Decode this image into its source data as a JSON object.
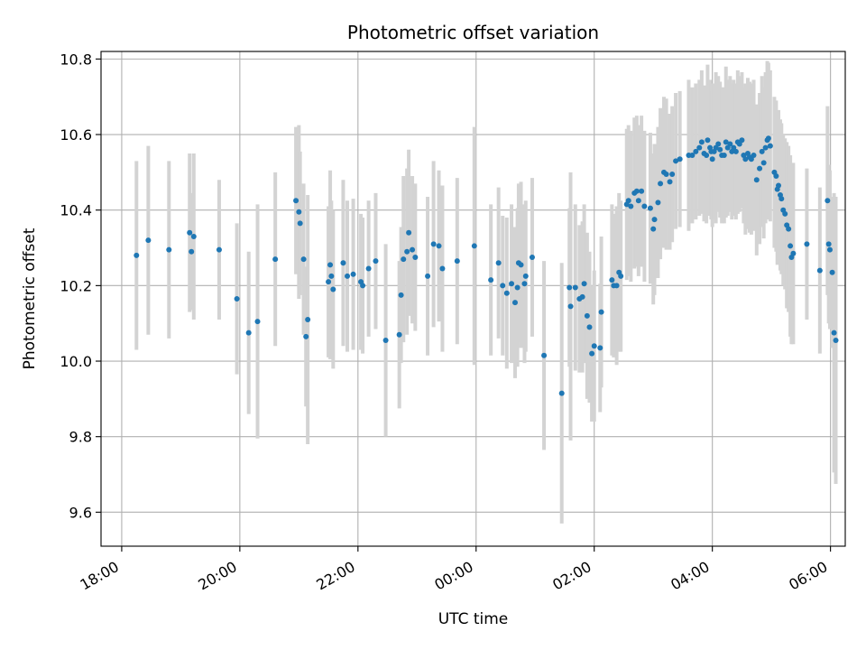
{
  "chart_data": {
    "type": "scatter",
    "title": "Photometric offset variation",
    "xlabel": "UTC time",
    "ylabel": "Photometric offset",
    "x_unit": "hours since 18:00 UTC",
    "xlim": [
      -0.35,
      12.25
    ],
    "ylim": [
      9.51,
      10.82
    ],
    "x_ticks": [
      0,
      2,
      4,
      6,
      8,
      10,
      12
    ],
    "x_tick_labels": [
      "18:00",
      "20:00",
      "22:00",
      "00:00",
      "02:00",
      "04:00",
      "06:00"
    ],
    "y_ticks": [
      9.6,
      9.8,
      10.0,
      10.2,
      10.4,
      10.6,
      10.8
    ],
    "y_tick_labels": [
      "9.6",
      "9.8",
      "10.0",
      "10.2",
      "10.4",
      "10.6",
      "10.8"
    ],
    "grid": true,
    "marker_color": "#1f77b4",
    "errorbar_color": "#d3d3d3",
    "points": [
      [
        0.25,
        10.28,
        0.25
      ],
      [
        0.45,
        10.32,
        0.25
      ],
      [
        0.8,
        10.295,
        0.235
      ],
      [
        1.15,
        10.34,
        0.21
      ],
      [
        1.18,
        10.29,
        0.155
      ],
      [
        1.22,
        10.33,
        0.22
      ],
      [
        1.65,
        10.295,
        0.185
      ],
      [
        1.95,
        10.165,
        0.2
      ],
      [
        2.15,
        10.075,
        0.215
      ],
      [
        2.3,
        10.105,
        0.31
      ],
      [
        2.6,
        10.27,
        0.23
      ],
      [
        2.95,
        10.425,
        0.195
      ],
      [
        3.0,
        10.395,
        0.23
      ],
      [
        3.02,
        10.365,
        0.19
      ],
      [
        3.08,
        10.27,
        0.2
      ],
      [
        3.12,
        10.065,
        0.185
      ],
      [
        3.15,
        10.11,
        0.33
      ],
      [
        3.5,
        10.21,
        0.2
      ],
      [
        3.53,
        10.255,
        0.25
      ],
      [
        3.55,
        10.225,
        0.2
      ],
      [
        3.58,
        10.19,
        0.21
      ],
      [
        3.75,
        10.26,
        0.22
      ],
      [
        3.82,
        10.225,
        0.2
      ],
      [
        3.92,
        10.23,
        0.2
      ],
      [
        4.05,
        10.21,
        0.18
      ],
      [
        4.08,
        10.2,
        0.18
      ],
      [
        4.18,
        10.245,
        0.18
      ],
      [
        4.3,
        10.265,
        0.18
      ],
      [
        4.47,
        10.055,
        0.255
      ],
      [
        4.7,
        10.07,
        0.195
      ],
      [
        4.73,
        10.175,
        0.18
      ],
      [
        4.77,
        10.27,
        0.22
      ],
      [
        4.83,
        10.29,
        0.22
      ],
      [
        4.86,
        10.34,
        0.22
      ],
      [
        4.92,
        10.295,
        0.195
      ],
      [
        4.97,
        10.275,
        0.195
      ],
      [
        5.18,
        10.225,
        0.21
      ],
      [
        5.28,
        10.31,
        0.22
      ],
      [
        5.37,
        10.305,
        0.2
      ],
      [
        5.43,
        10.245,
        0.22
      ],
      [
        5.68,
        10.265,
        0.22
      ],
      [
        5.97,
        10.305,
        0.315
      ],
      [
        6.25,
        10.215,
        0.2
      ],
      [
        6.38,
        10.26,
        0.2
      ],
      [
        6.45,
        10.2,
        0.185
      ],
      [
        6.52,
        10.18,
        0.2
      ],
      [
        6.6,
        10.205,
        0.21
      ],
      [
        6.66,
        10.155,
        0.2
      ],
      [
        6.7,
        10.195,
        0.21
      ],
      [
        6.72,
        10.26,
        0.21
      ],
      [
        6.76,
        10.255,
        0.22
      ],
      [
        6.82,
        10.205,
        0.21
      ],
      [
        6.84,
        10.225,
        0.2
      ],
      [
        6.95,
        10.275,
        0.21
      ],
      [
        7.15,
        10.015,
        0.25
      ],
      [
        7.45,
        9.915,
        0.345
      ],
      [
        7.58,
        10.195,
        0.21
      ],
      [
        7.6,
        10.145,
        0.355
      ],
      [
        7.68,
        10.195,
        0.22
      ],
      [
        7.75,
        10.165,
        0.195
      ],
      [
        7.8,
        10.17,
        0.2
      ],
      [
        7.83,
        10.205,
        0.21
      ],
      [
        7.88,
        10.12,
        0.22
      ],
      [
        7.92,
        10.09,
        0.2
      ],
      [
        7.96,
        10.02,
        0.18
      ],
      [
        8.0,
        10.04,
        0.2
      ],
      [
        8.1,
        10.035,
        0.17
      ],
      [
        8.12,
        10.13,
        0.2
      ],
      [
        8.3,
        10.215,
        0.2
      ],
      [
        8.33,
        10.2,
        0.19
      ],
      [
        8.38,
        10.2,
        0.21
      ],
      [
        8.42,
        10.235,
        0.21
      ],
      [
        8.45,
        10.225,
        0.2
      ],
      [
        8.55,
        10.415,
        0.2
      ],
      [
        8.58,
        10.425,
        0.2
      ],
      [
        8.62,
        10.41,
        0.2
      ],
      [
        8.68,
        10.445,
        0.2
      ],
      [
        8.72,
        10.45,
        0.2
      ],
      [
        8.75,
        10.425,
        0.2
      ],
      [
        8.8,
        10.45,
        0.2
      ],
      [
        8.85,
        10.41,
        0.2
      ],
      [
        8.95,
        10.405,
        0.2
      ],
      [
        9.0,
        10.35,
        0.2
      ],
      [
        9.02,
        10.375,
        0.2
      ],
      [
        9.08,
        10.42,
        0.2
      ],
      [
        9.12,
        10.47,
        0.2
      ],
      [
        9.18,
        10.5,
        0.2
      ],
      [
        9.22,
        10.495,
        0.2
      ],
      [
        9.28,
        10.475,
        0.18
      ],
      [
        9.32,
        10.495,
        0.18
      ],
      [
        9.38,
        10.53,
        0.18
      ],
      [
        9.45,
        10.535,
        0.18
      ],
      [
        9.6,
        10.545,
        0.2
      ],
      [
        9.66,
        10.545,
        0.18
      ],
      [
        9.72,
        10.555,
        0.18
      ],
      [
        9.78,
        10.565,
        0.18
      ],
      [
        9.82,
        10.58,
        0.19
      ],
      [
        9.86,
        10.55,
        0.18
      ],
      [
        9.9,
        10.545,
        0.18
      ],
      [
        9.92,
        10.585,
        0.2
      ],
      [
        9.96,
        10.565,
        0.18
      ],
      [
        9.98,
        10.555,
        0.18
      ],
      [
        10.0,
        10.535,
        0.18
      ],
      [
        10.03,
        10.555,
        0.18
      ],
      [
        10.06,
        10.565,
        0.2
      ],
      [
        10.1,
        10.575,
        0.18
      ],
      [
        10.13,
        10.56,
        0.18
      ],
      [
        10.16,
        10.545,
        0.18
      ],
      [
        10.2,
        10.545,
        0.18
      ],
      [
        10.23,
        10.58,
        0.2
      ],
      [
        10.26,
        10.565,
        0.18
      ],
      [
        10.3,
        10.575,
        0.18
      ],
      [
        10.33,
        10.555,
        0.18
      ],
      [
        10.36,
        10.565,
        0.18
      ],
      [
        10.4,
        10.555,
        0.18
      ],
      [
        10.43,
        10.58,
        0.19
      ],
      [
        10.46,
        10.575,
        0.18
      ],
      [
        10.5,
        10.585,
        0.18
      ],
      [
        10.53,
        10.545,
        0.18
      ],
      [
        10.56,
        10.535,
        0.2
      ],
      [
        10.6,
        10.55,
        0.2
      ],
      [
        10.63,
        10.54,
        0.2
      ],
      [
        10.66,
        10.535,
        0.2
      ],
      [
        10.7,
        10.545,
        0.2
      ],
      [
        10.75,
        10.48,
        0.2
      ],
      [
        10.8,
        10.51,
        0.2
      ],
      [
        10.84,
        10.555,
        0.2
      ],
      [
        10.87,
        10.525,
        0.2
      ],
      [
        10.9,
        10.565,
        0.2
      ],
      [
        10.93,
        10.585,
        0.21
      ],
      [
        10.95,
        10.59,
        0.2
      ],
      [
        10.98,
        10.57,
        0.2
      ],
      [
        11.05,
        10.5,
        0.2
      ],
      [
        11.08,
        10.49,
        0.2
      ],
      [
        11.1,
        10.455,
        0.2
      ],
      [
        11.12,
        10.465,
        0.2
      ],
      [
        11.15,
        10.44,
        0.2
      ],
      [
        11.17,
        10.43,
        0.2
      ],
      [
        11.2,
        10.4,
        0.2
      ],
      [
        11.23,
        10.39,
        0.2
      ],
      [
        11.26,
        10.36,
        0.22
      ],
      [
        11.29,
        10.35,
        0.22
      ],
      [
        11.32,
        10.305,
        0.24
      ],
      [
        11.34,
        10.275,
        0.23
      ],
      [
        11.37,
        10.285,
        0.24
      ],
      [
        11.6,
        10.31,
        0.2
      ],
      [
        11.82,
        10.24,
        0.22
      ],
      [
        11.95,
        10.425,
        0.25
      ],
      [
        11.97,
        10.31,
        0.21
      ],
      [
        11.99,
        10.295,
        0.21
      ],
      [
        12.03,
        10.235,
        0.2
      ],
      [
        12.06,
        10.075,
        0.37
      ],
      [
        12.09,
        10.055,
        0.38
      ]
    ]
  }
}
